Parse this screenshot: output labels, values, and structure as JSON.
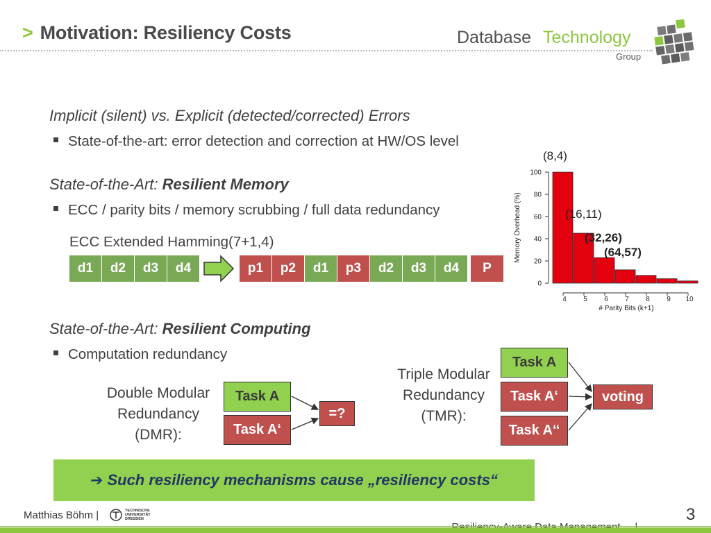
{
  "header": {
    "caret": ">",
    "title": "Motivation: Resiliency Costs"
  },
  "logo": {
    "word1": "Database",
    "word2": "Technology",
    "word3": "Group"
  },
  "sections": {
    "s1_heading": "Implicit (silent) vs. Explicit (detected/corrected) Errors",
    "s1_bullet": "State-of-the-art: error detection and correction at HW/OS level",
    "s2_heading_prefix": "State-of-the-Art: ",
    "s2_heading_bold": "Resilient Memory",
    "s2_bullet": "ECC / parity bits / memory scrubbing / full data redundancy",
    "ecc_label": "ECC Extended Hamming(7+1,4)",
    "s3_heading_prefix": "State-of-the-Art: ",
    "s3_heading_bold": "Resilient Computing",
    "s3_bullet": "Computation redundancy"
  },
  "ecc": {
    "input_cells": [
      "d1",
      "d2",
      "d3",
      "d4"
    ],
    "output_cells": [
      {
        "label": "p1",
        "kind": "parity"
      },
      {
        "label": "p2",
        "kind": "parity"
      },
      {
        "label": "d1",
        "kind": "data"
      },
      {
        "label": "p3",
        "kind": "parity"
      },
      {
        "label": "d2",
        "kind": "data"
      },
      {
        "label": "d3",
        "kind": "data"
      },
      {
        "label": "d4",
        "kind": "data"
      },
      {
        "label": "P",
        "kind": "parity"
      }
    ]
  },
  "dmr": {
    "label_line1": "Double Modular",
    "label_line2": "Redundancy",
    "label_line3": "(DMR):",
    "task1": "Task A",
    "task2": "Task A‘",
    "compare": "=?"
  },
  "tmr": {
    "label_line1": "Triple Modular",
    "label_line2": "Redundancy",
    "label_line3": "(TMR):",
    "task1": "Task A",
    "task2": "Task A‘",
    "task3": "Task A‘‘",
    "voter": "voting"
  },
  "callout": {
    "arrow": "➔",
    "text": "Such resiliency mechanisms cause „resiliency costs“"
  },
  "footer": {
    "author": "Matthias Böhm |",
    "univ_line1": "TECHNISCHE",
    "univ_line2": "UNIVERSITÄT",
    "univ_line3": "DRESDEN",
    "talk": "Resiliency-Aware Data Management     |",
    "page": "3"
  },
  "colors": {
    "accent_green": "#8dc63f",
    "data_cell": "#7aa956",
    "parity_cell": "#c0504d",
    "bar_fill": "#e3000f"
  },
  "chart_data": {
    "type": "bar",
    "categories": [
      "4",
      "5",
      "6",
      "7",
      "8",
      "9",
      "10"
    ],
    "values": [
      100,
      45,
      23,
      12,
      7,
      4,
      2
    ],
    "xlabel": "# Parity Bits (k+1)",
    "ylabel": "Memory Overhead (%)",
    "ylim": [
      0,
      100
    ],
    "yticks": [
      0,
      20,
      40,
      60,
      80,
      100
    ],
    "annotations": [
      {
        "text": "(8,4)",
        "category": "4",
        "bold": false
      },
      {
        "text": "(16,11)",
        "category": "5",
        "bold": false
      },
      {
        "text": "(32,26)",
        "category": "6",
        "bold": true
      },
      {
        "text": "(64,57)",
        "category": "7",
        "bold": true
      }
    ]
  }
}
